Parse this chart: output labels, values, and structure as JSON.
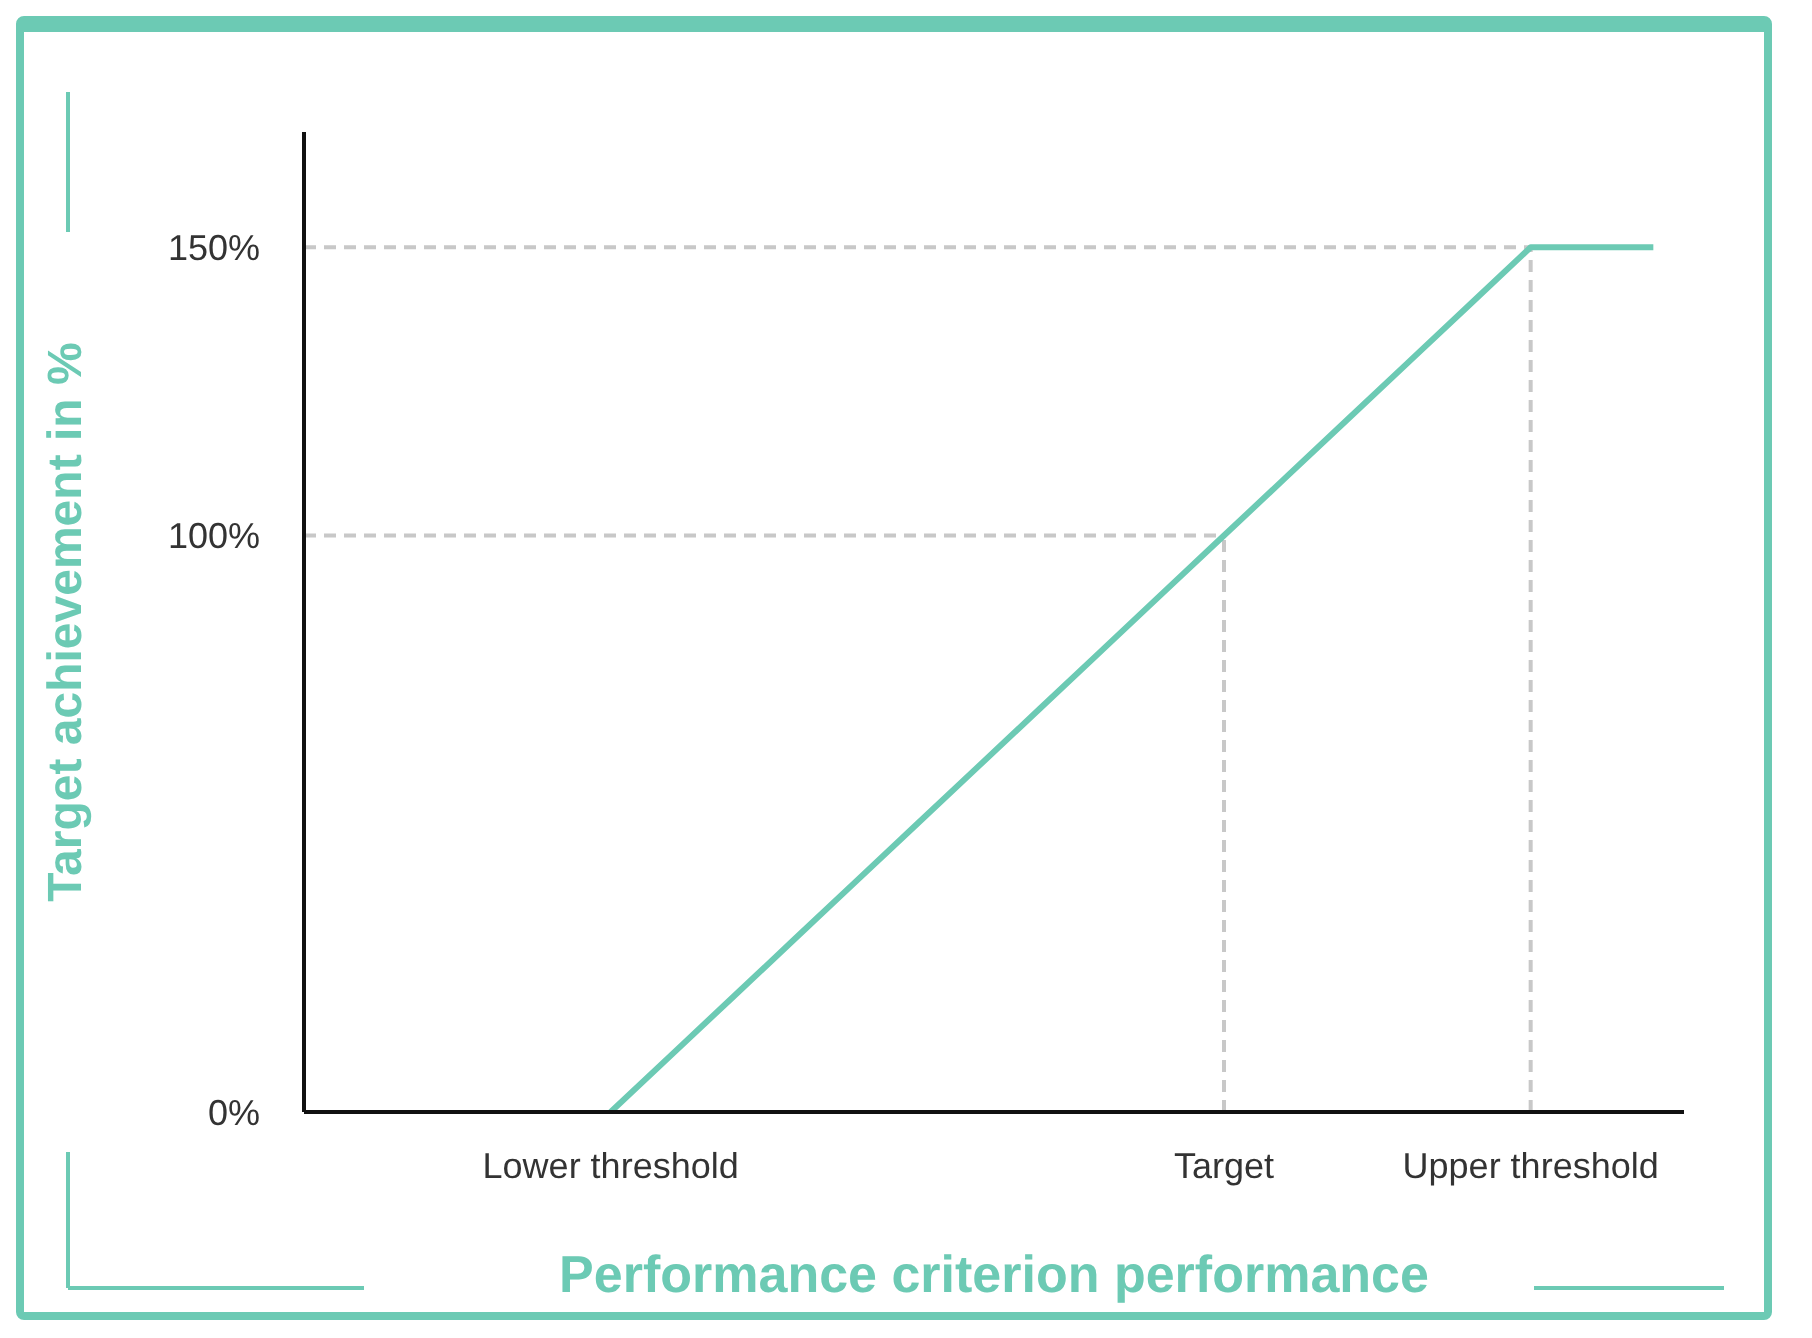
{
  "chart_data": {
    "type": "line",
    "xlabel": "Performance criterion performance",
    "ylabel": "Target achievement in %",
    "categories": [
      null,
      null,
      null,
      null,
      null,
      "Lower threshold",
      null,
      null,
      null,
      null,
      null,
      null,
      null,
      null,
      null,
      "Target",
      null,
      null,
      null,
      null,
      "Upper threshold",
      null,
      null
    ],
    "series": [
      {
        "color": "#6ccab4",
        "values": [
          null,
          null,
          null,
          null,
          null,
          0,
          10,
          20,
          30,
          40,
          50,
          60,
          70,
          80,
          90,
          100,
          110,
          120,
          130,
          140,
          150,
          150,
          150
        ]
      }
    ],
    "ylim": [
      0,
      170
    ],
    "yticks": [
      {
        "value": 0,
        "label": "0%"
      },
      {
        "value": 100,
        "label": "100%"
      },
      {
        "value": 150,
        "label": "150%"
      }
    ],
    "ref_lines": [
      {
        "axis": "y",
        "value": 100,
        "color": "#c8c8c8",
        "line_style": "dashed"
      },
      {
        "axis": "y",
        "value": 150,
        "color": "#c8c8c8",
        "line_style": "dashed"
      },
      {
        "axis": "x",
        "value": "Target",
        "color": "#c8c8c8",
        "line_style": "dashed"
      },
      {
        "axis": "x",
        "value": "Upper threshold",
        "color": "#c8c8c8",
        "line_style": "dashed"
      }
    ],
    "grid": false,
    "legend": false
  }
}
